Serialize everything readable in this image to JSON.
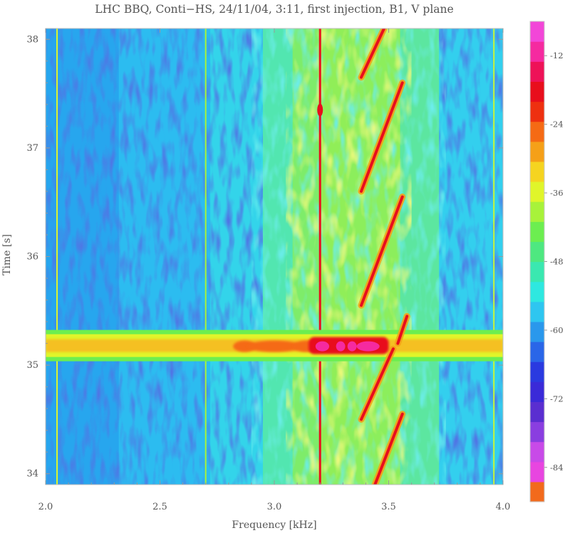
{
  "chart_data": {
    "type": "heatmap",
    "title": "LHC BBQ,  Conti−HS,  24/11/04,  3:11,  first injection,  B1,  V plane",
    "xlabel": "Frequency  [kHz]",
    "ylabel": "Time  [s]",
    "xlim": [
      2.0,
      4.0
    ],
    "ylim": [
      33.9,
      38.1
    ],
    "x_ticks": [
      "2.0",
      "2.5",
      "3.0",
      "3.5",
      "4.0"
    ],
    "y_ticks": [
      "34",
      "35",
      "36",
      "37",
      "38"
    ],
    "colorbar": {
      "range": [
        -90,
        -6
      ],
      "ticks": [
        "-12",
        "-24",
        "-36",
        "-48",
        "-60",
        "-72",
        "-84"
      ],
      "colors": [
        "#f26a1c",
        "#e845e0",
        "#c84ae8",
        "#8a3ee0",
        "#5a2ed0",
        "#3a2ad8",
        "#2a3ae0",
        "#2a66e8",
        "#2a98ec",
        "#2ec6f0",
        "#2ee8e0",
        "#3ae8b0",
        "#4ee880",
        "#6cee50",
        "#a8f23a",
        "#e0f52a",
        "#f5d420",
        "#f5a018",
        "#f56a14",
        "#ee3010",
        "#e80e1c",
        "#ee1258",
        "#f52aa0",
        "#f246d8"
      ]
    },
    "features": [
      {
        "name": "injection-transient",
        "time": 35.18,
        "freq_range": [
          2.0,
          4.0
        ],
        "peak_freq_range": [
          3.15,
          3.5
        ],
        "level": -12
      },
      {
        "name": "tune-line",
        "freq": 3.2,
        "level": -24
      },
      {
        "name": "line-2.05",
        "freq": 2.05,
        "level": -36
      },
      {
        "name": "line-3.96",
        "freq": 3.96,
        "level": -44
      },
      {
        "name": "line-2.7",
        "freq": 2.7,
        "level": -50
      }
    ],
    "chirps": [
      {
        "t0": 33.9,
        "t1": 34.55,
        "f0": 3.44,
        "f1": 3.56
      },
      {
        "t0": 34.5,
        "t1": 35.15,
        "f0": 3.38,
        "f1": 3.52
      },
      {
        "t0": 35.55,
        "t1": 36.55,
        "f0": 3.38,
        "f1": 3.56
      },
      {
        "t0": 36.6,
        "t1": 37.6,
        "f0": 3.38,
        "f1": 3.56
      },
      {
        "t0": 37.65,
        "t1": 38.1,
        "f0": 3.38,
        "f1": 3.48
      },
      {
        "t0": 35.2,
        "t1": 35.45,
        "f0": 3.54,
        "f1": 3.58
      }
    ]
  }
}
